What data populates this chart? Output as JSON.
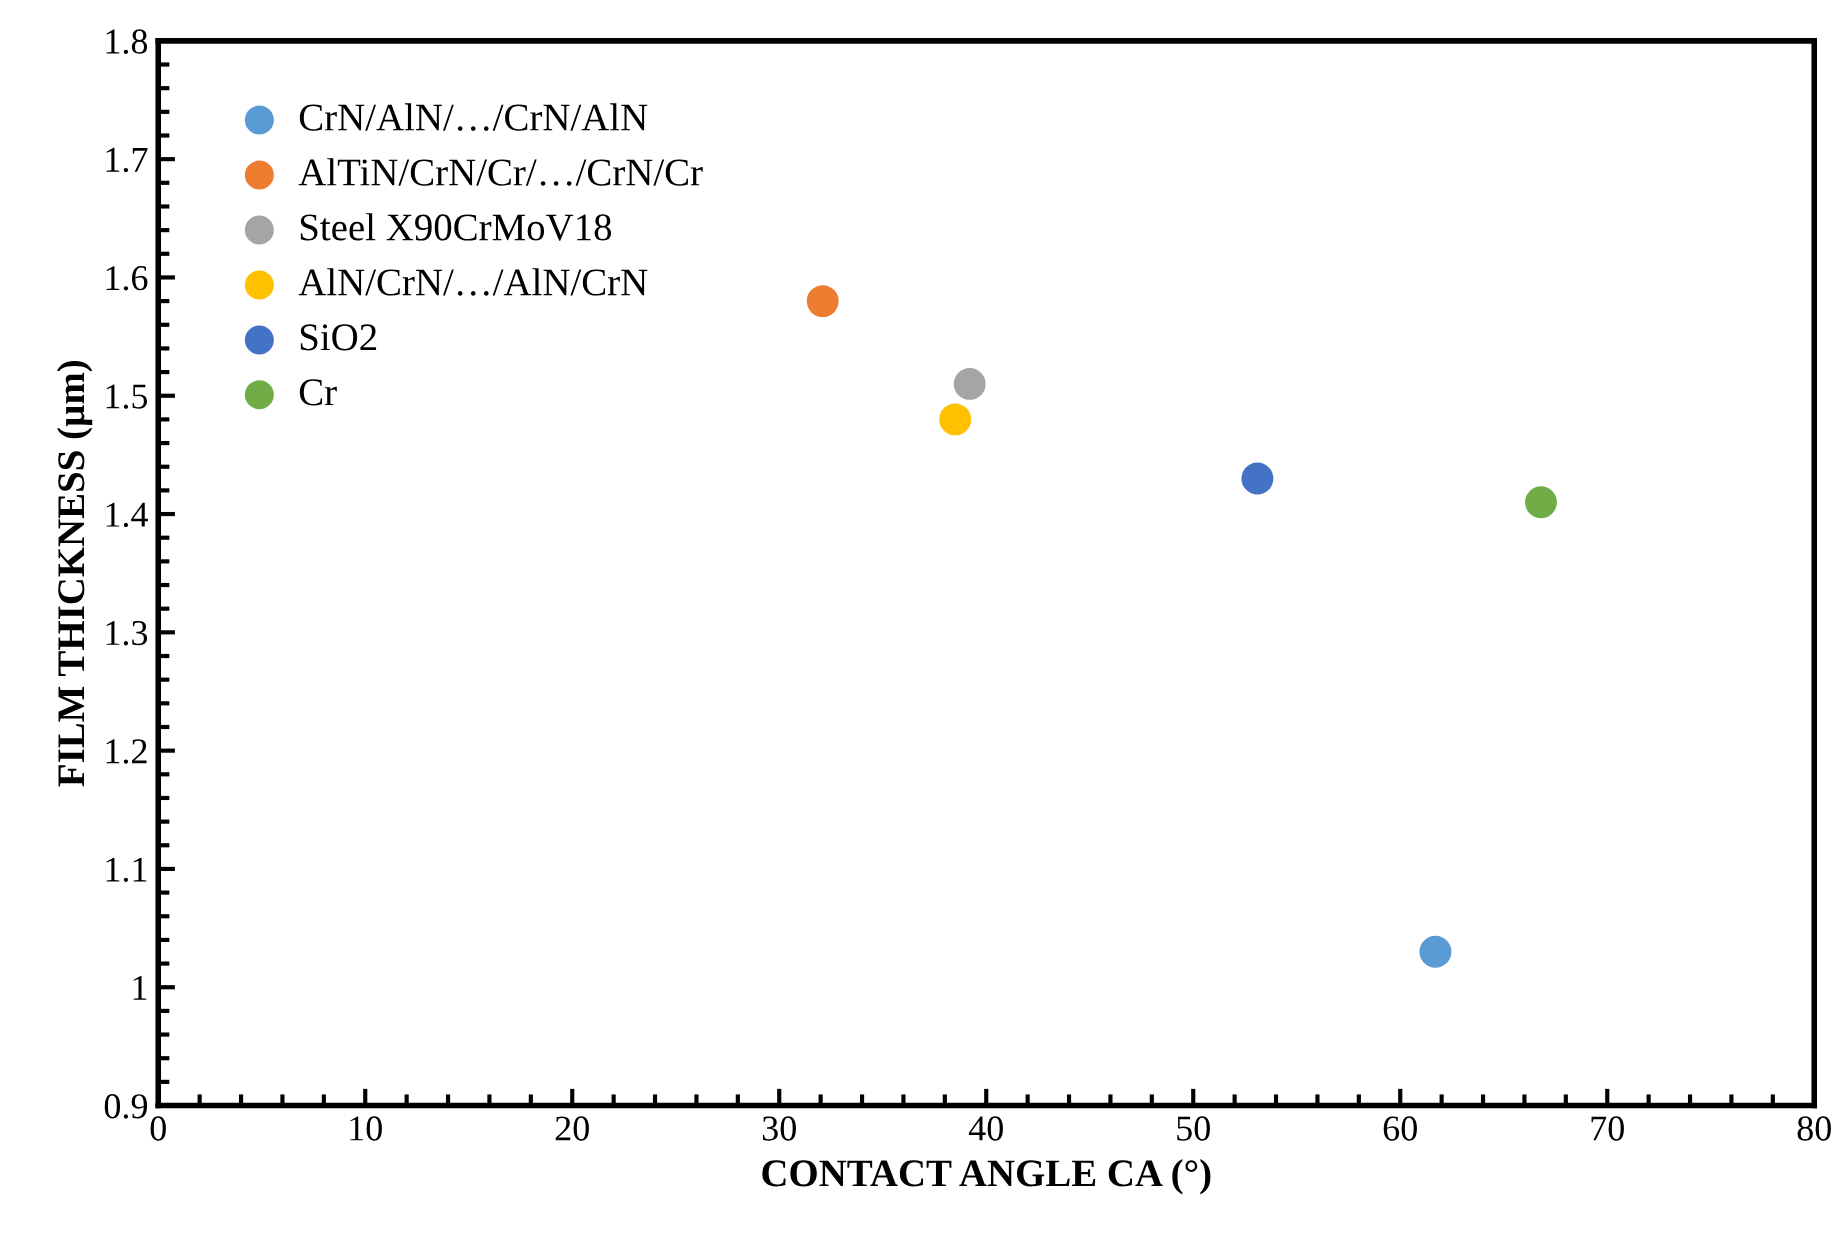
{
  "chart_data": {
    "type": "scatter",
    "xlabel": "CONTACT ANGLE CA (°)",
    "ylabel": "FILM THICKNESS (µm)",
    "xlim": [
      0,
      80
    ],
    "xticks": [
      0,
      10,
      20,
      30,
      40,
      50,
      60,
      70,
      80
    ],
    "ylim": [
      0.9,
      1.8
    ],
    "yticks": [
      0.9,
      1,
      1.1,
      1.2,
      1.3,
      1.4,
      1.5,
      1.6,
      1.7,
      1.8
    ],
    "grid": false,
    "legend": "top left",
    "marker": "circle",
    "series": [
      {
        "name": "CrN/AlN/…/CrN/AlN",
        "color": "#5b9bd5",
        "x": [
          61.7
        ],
        "values": [
          1.03
        ]
      },
      {
        "name": "AlTiN/CrN/Cr/…/CrN/Cr",
        "color": "#ed7d31",
        "x": [
          32.1
        ],
        "values": [
          1.58
        ]
      },
      {
        "name": "Steel X90CrMoV18",
        "color": "#a5a5a5",
        "x": [
          39.2
        ],
        "values": [
          1.51
        ]
      },
      {
        "name": "AlN/CrN/…/AlN/CrN",
        "color": "#ffc000",
        "x": [
          38.5
        ],
        "values": [
          1.48
        ]
      },
      {
        "name": "SiO2",
        "color": "#4472c4",
        "x": [
          53.1
        ],
        "values": [
          1.43
        ]
      },
      {
        "name": "Cr",
        "color": "#70ad47",
        "x": [
          66.8
        ],
        "values": [
          1.41
        ]
      }
    ]
  }
}
